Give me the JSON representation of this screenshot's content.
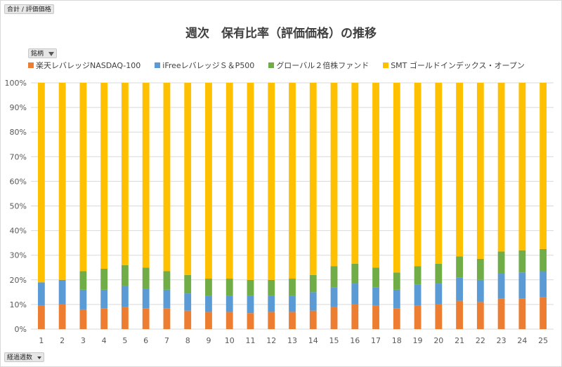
{
  "field_buttons": {
    "values_field": "合計 / 評価価格",
    "legend_field": "銘柄",
    "axis_field": "経過週数"
  },
  "chart_data": {
    "type": "bar",
    "stacked": true,
    "percent_stacked": true,
    "title": "週次　保有比率（評価価格）の推移",
    "xlabel": "",
    "ylabel": "",
    "ylim": [
      0,
      100
    ],
    "yticks": [
      "0%",
      "10%",
      "20%",
      "30%",
      "40%",
      "50%",
      "60%",
      "70%",
      "80%",
      "90%",
      "100%"
    ],
    "grid": true,
    "legend_position": "top",
    "categories": [
      "1",
      "2",
      "3",
      "4",
      "5",
      "6",
      "7",
      "8",
      "9",
      "10",
      "11",
      "12",
      "13",
      "14",
      "15",
      "16",
      "17",
      "18",
      "19",
      "20",
      "21",
      "22",
      "23",
      "24",
      "25"
    ],
    "series": [
      {
        "name": "楽天レバレッジNASDAQ-100",
        "color": "#ed7d31",
        "values": [
          9.5,
          10.0,
          8.0,
          8.5,
          9.0,
          8.5,
          8.5,
          7.5,
          7.0,
          7.0,
          6.5,
          7.0,
          7.0,
          7.5,
          9.0,
          10.0,
          9.5,
          8.5,
          9.5,
          10.0,
          11.5,
          11.0,
          12.5,
          12.5,
          13.0
        ]
      },
      {
        "name": "iFreeレバレッジＳ＆P500",
        "color": "#5b9bd5",
        "values": [
          9.5,
          10.0,
          8.0,
          7.5,
          8.5,
          8.0,
          7.5,
          7.0,
          6.5,
          6.5,
          7.0,
          6.5,
          6.5,
          7.5,
          8.0,
          8.5,
          7.5,
          7.5,
          8.5,
          8.5,
          9.5,
          9.0,
          10.0,
          10.5,
          10.5
        ]
      },
      {
        "name": "グローバル２倍株ファンド",
        "color": "#70ad47",
        "values": [
          0.0,
          0.0,
          7.5,
          8.5,
          8.5,
          8.5,
          7.5,
          7.5,
          7.0,
          7.0,
          6.5,
          6.5,
          7.0,
          7.0,
          8.5,
          8.0,
          8.0,
          7.0,
          7.5,
          8.0,
          8.5,
          8.5,
          9.0,
          9.0,
          9.0
        ]
      },
      {
        "name": "SMT ゴールドインデックス・オープン",
        "color": "#ffc000",
        "values": [
          81.0,
          80.0,
          76.5,
          75.5,
          74.0,
          75.0,
          76.5,
          78.0,
          79.5,
          79.5,
          80.0,
          80.0,
          79.5,
          78.0,
          74.5,
          73.5,
          75.0,
          77.0,
          74.5,
          73.5,
          70.5,
          71.5,
          68.5,
          68.0,
          67.5
        ]
      }
    ]
  }
}
